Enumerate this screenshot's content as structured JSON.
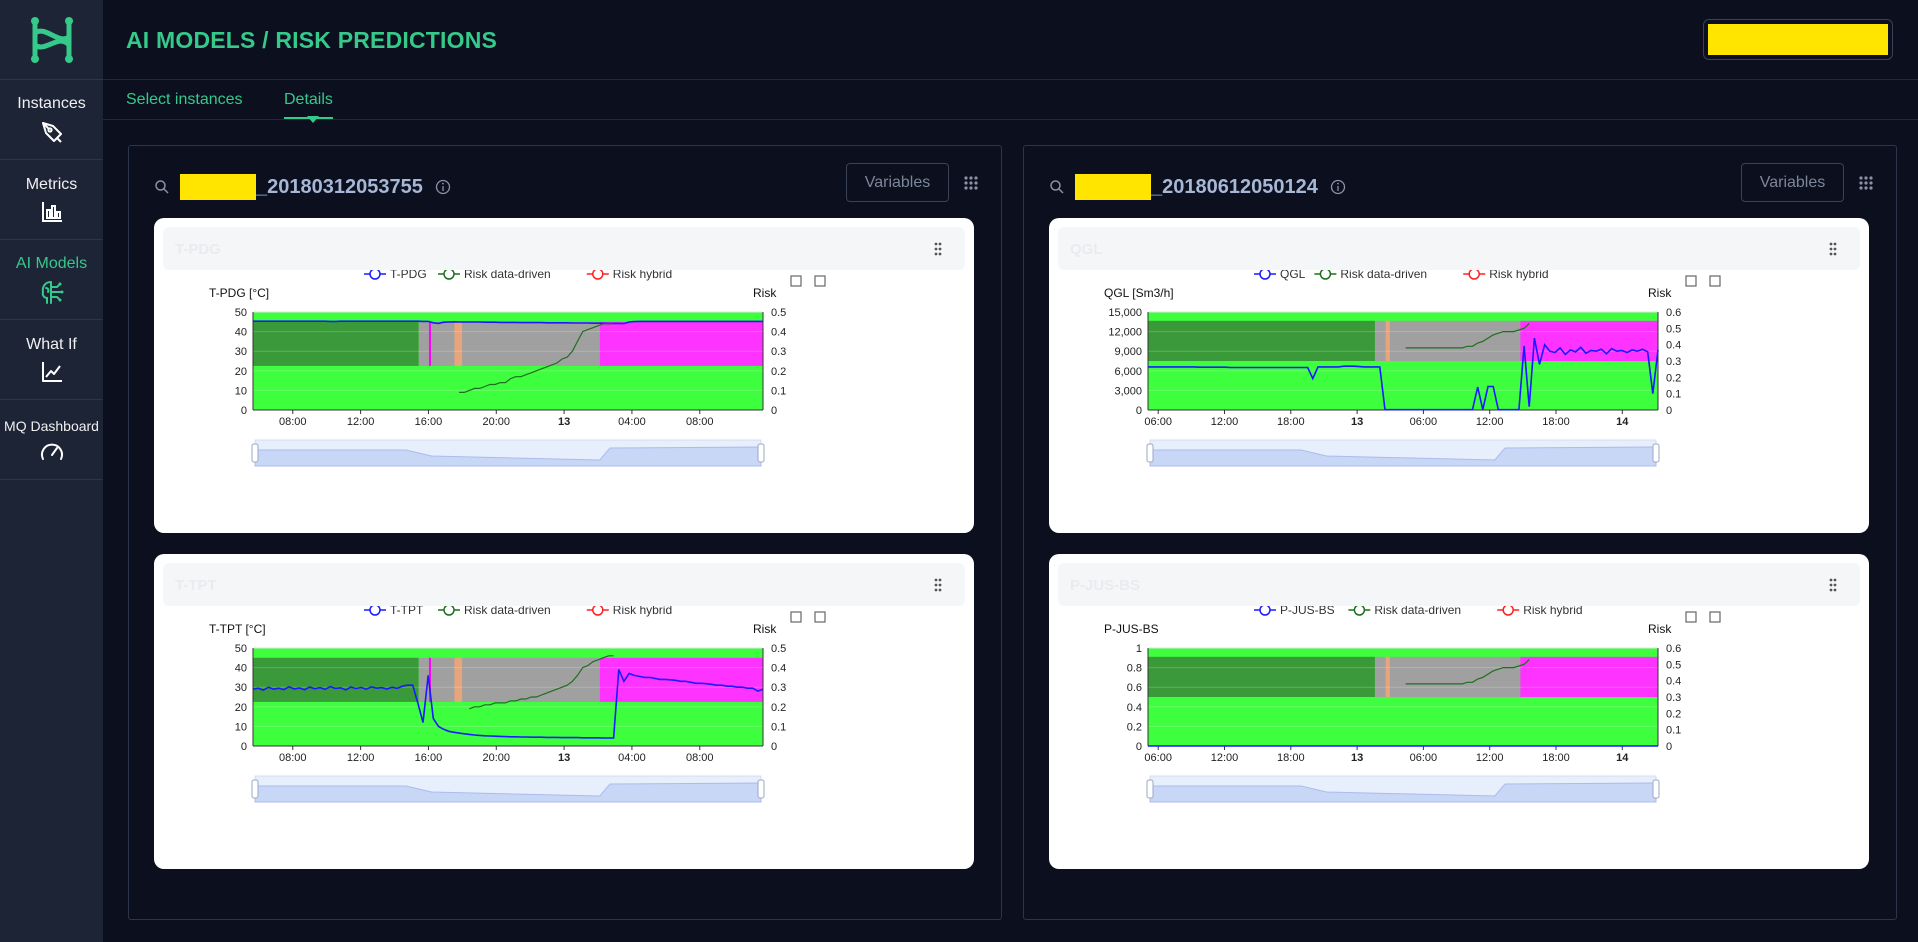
{
  "header": {
    "title": "AI MODELS / RISK PREDICTIONS"
  },
  "sidebar": {
    "items": [
      {
        "label": "Instances",
        "icon": "pen-tool-icon"
      },
      {
        "label": "Metrics",
        "icon": "bar-chart-icon"
      },
      {
        "label": "AI Models",
        "icon": "brain-icon",
        "active": true
      },
      {
        "label": "What If",
        "icon": "line-chart-icon"
      },
      {
        "label": "MQ Dashboard",
        "icon": "gauge-icon"
      }
    ]
  },
  "tabs": {
    "select": "Select instances",
    "details": "Details"
  },
  "panels": [
    {
      "instance_suffix": "_20180312053755",
      "variables_label": "Variables"
    },
    {
      "instance_suffix": "_20180612050124",
      "variables_label": "Variables"
    }
  ],
  "colors": {
    "accent": "#35c98a",
    "series_main": "#1a1aff",
    "series_data_driven": "#1f6e1f",
    "series_hybrid": "#ff2020",
    "zone_green": "#3dff3d",
    "zone_dark_green": "#3a9a3a",
    "zone_gray": "#a0a0a0",
    "zone_magenta": "#ff33ff",
    "zone_orange": "#e8a57c"
  },
  "chart_data": [
    {
      "type": "line",
      "title": "T-PDG",
      "legend": [
        "T-PDG",
        "Risk data-driven",
        "Risk hybrid"
      ],
      "ylabel": "T-PDG [°C]",
      "y2label": "Risk",
      "x_ticks": [
        "08:00",
        "12:00",
        "16:00",
        "20:00",
        "13",
        "04:00",
        "08:00"
      ],
      "y_ticks": [
        "50",
        "40",
        "30",
        "20",
        "10",
        "0"
      ],
      "y2_ticks": [
        "0.5",
        "0.4",
        "0.3",
        "0.2",
        "0.1",
        "0"
      ],
      "ylim": [
        0,
        50
      ],
      "y2lim": [
        0,
        0.5
      ],
      "series": [
        {
          "name": "T-PDG",
          "values": [
            45.3,
            45.3,
            45.3,
            45.3,
            45.3,
            45.3,
            45.3,
            45.3,
            45.3,
            45.3,
            45.3,
            45.3,
            45.3,
            45.3,
            45.3,
            45.2,
            45.2,
            45.3,
            45.3,
            45.3,
            45.3,
            45.3,
            45.3,
            45.3,
            45.3,
            45.3,
            45.3,
            45.3,
            45.3,
            45.3,
            45.3,
            45.3,
            45.3,
            45.2,
            45.2,
            44.5,
            44.2,
            44.8,
            44.9,
            45.0,
            44.9,
            44.9,
            44.9,
            44.9,
            44.9,
            44.8,
            44.8,
            44.8,
            44.7,
            44.7,
            44.7,
            44.7,
            44.6,
            44.6,
            44.6,
            44.6,
            44.6,
            44.5,
            44.5,
            44.5,
            44.5,
            44.5,
            44.4,
            44.4,
            44.4,
            44.4,
            44.3,
            44.3,
            44.3,
            44.2,
            44.2,
            44.2,
            44.1,
            44.9,
            45.1,
            45.2,
            45.2,
            45.2,
            45.2,
            45.2,
            45.2,
            45.2,
            45.2,
            45.2,
            45.2,
            45.2,
            45.2,
            45.2,
            45.2,
            45.2,
            45.2,
            45.2,
            45.2,
            45.2,
            45.2,
            45.2,
            45.2,
            45.2,
            45.2,
            45.2
          ]
        },
        {
          "name": "Risk data-driven",
          "values": [
            null,
            null,
            null,
            null,
            null,
            null,
            null,
            null,
            null,
            null,
            null,
            null,
            null,
            null,
            null,
            null,
            null,
            null,
            null,
            null,
            null,
            null,
            null,
            null,
            null,
            null,
            null,
            null,
            null,
            null,
            null,
            null,
            null,
            null,
            null,
            null,
            null,
            null,
            null,
            null,
            0.09,
            0.09,
            0.1,
            0.11,
            0.11,
            0.12,
            0.13,
            0.13,
            0.14,
            0.14,
            0.16,
            0.17,
            0.17,
            0.18,
            0.19,
            0.2,
            0.21,
            0.22,
            0.23,
            0.24,
            0.26,
            0.27,
            0.3,
            0.35,
            0.4,
            0.41,
            0.42,
            0.43,
            0.44,
            0.44,
            0.44,
            null,
            null,
            null,
            null,
            null,
            null,
            null,
            null,
            null,
            null,
            null,
            null,
            null,
            null,
            null,
            null,
            null,
            null,
            null,
            null,
            null,
            null,
            null,
            null,
            null,
            null,
            null,
            null,
            null
          ]
        },
        {
          "name": "Risk hybrid",
          "values": []
        }
      ]
    },
    {
      "type": "line",
      "title": "T-TPT",
      "legend": [
        "T-TPT",
        "Risk data-driven",
        "Risk hybrid"
      ],
      "ylabel": "T-TPT [°C]",
      "y2label": "Risk",
      "x_ticks": [
        "08:00",
        "12:00",
        "16:00",
        "20:00",
        "13",
        "04:00",
        "08:00"
      ],
      "y_ticks": [
        "50",
        "40",
        "30",
        "20",
        "10",
        "0"
      ],
      "y2_ticks": [
        "0.5",
        "0.4",
        "0.3",
        "0.2",
        "0.1",
        "0"
      ],
      "ylim": [
        0,
        50
      ],
      "y2lim": [
        0,
        0.5
      ],
      "series": [
        {
          "name": "T-TPT",
          "values": [
            29,
            29.5,
            28.5,
            30,
            29,
            29.5,
            28.8,
            30.2,
            29.1,
            29.6,
            28.7,
            30.1,
            29.2,
            29.8,
            28.9,
            30.3,
            29.4,
            29.7,
            28.6,
            30.1,
            29.3,
            29.9,
            29.0,
            30.2,
            29.5,
            29.8,
            29.1,
            30.0,
            29.4,
            30.5,
            31,
            31,
            22,
            12,
            36,
            14,
            10,
            8.5,
            7.5,
            7,
            6.6,
            6.2,
            5.9,
            5.6,
            5.4,
            5.2,
            5.1,
            5.0,
            4.9,
            4.8,
            4.7,
            4.7,
            4.6,
            4.6,
            4.5,
            4.5,
            4.5,
            4.4,
            4.4,
            4.4,
            4.3,
            4.3,
            4.3,
            4.3,
            4.2,
            4.2,
            4.2,
            4.2,
            4.1,
            4.1,
            4.1,
            39,
            33,
            37,
            36,
            35.5,
            35,
            35,
            34.5,
            34,
            34,
            33.8,
            33.5,
            33,
            33,
            32.5,
            32,
            32,
            31.8,
            31.5,
            31,
            31,
            30.5,
            30.5,
            30,
            30,
            29.5,
            29.5,
            28,
            29
          ]
        },
        {
          "name": "Risk data-driven",
          "values": [
            null,
            null,
            null,
            null,
            null,
            null,
            null,
            null,
            null,
            null,
            null,
            null,
            null,
            null,
            null,
            null,
            null,
            null,
            null,
            null,
            null,
            null,
            null,
            null,
            null,
            null,
            null,
            null,
            null,
            null,
            null,
            null,
            null,
            null,
            null,
            null,
            null,
            null,
            null,
            null,
            null,
            null,
            0.19,
            0.2,
            0.2,
            0.21,
            0.21,
            0.22,
            0.22,
            0.22,
            0.23,
            0.23,
            0.24,
            0.24,
            0.25,
            0.25,
            0.26,
            0.27,
            0.28,
            0.29,
            0.3,
            0.31,
            0.33,
            0.36,
            0.4,
            0.41,
            0.43,
            0.44,
            0.45,
            0.46,
            0.46,
            null,
            null,
            null,
            null,
            null,
            null,
            null,
            null,
            null,
            null,
            null,
            null,
            null,
            null,
            null,
            null,
            null,
            null,
            null,
            null,
            null,
            null,
            null,
            null,
            null,
            null,
            null,
            null,
            null
          ]
        },
        {
          "name": "Risk hybrid",
          "values": []
        }
      ]
    },
    {
      "type": "line",
      "title": "QGL",
      "legend": [
        "QGL",
        "Risk data-driven",
        "Risk hybrid"
      ],
      "ylabel": "QGL [Sm3/h]",
      "y2label": "Risk",
      "x_ticks": [
        "06:00",
        "12:00",
        "18:00",
        "13",
        "06:00",
        "12:00",
        "18:00",
        "14"
      ],
      "y_ticks": [
        "15,000",
        "12,000",
        "9,000",
        "6,000",
        "3,000",
        "0"
      ],
      "y2_ticks": [
        "0.6",
        "0.5",
        "0.4",
        "0.3",
        "0.2",
        "0.1",
        "0"
      ],
      "ylim": [
        0,
        15000
      ],
      "y2lim": [
        0,
        0.6
      ],
      "series": [
        {
          "name": "QGL",
          "values": [
            6600,
            6600,
            6600,
            6600,
            6600,
            6600,
            6600,
            6600,
            6600,
            6600,
            6550,
            6550,
            6550,
            6550,
            6550,
            6550,
            6500,
            6500,
            6500,
            6500,
            6500,
            6500,
            6500,
            6500,
            6500,
            6500,
            6500,
            6500,
            6500,
            6500,
            6500,
            6500,
            4800,
            6600,
            6600,
            6600,
            6600,
            6600,
            6700,
            6700,
            6700,
            6650,
            6600,
            6600,
            6600,
            6600,
            50,
            50,
            50,
            50,
            50,
            50,
            50,
            50,
            50,
            50,
            50,
            50,
            50,
            50,
            50,
            50,
            50,
            50,
            3500,
            50,
            3600,
            3600,
            50,
            50,
            50,
            50,
            50,
            9800,
            500,
            11000,
            7000,
            10000,
            9000,
            8800,
            9500,
            8500,
            9200,
            8900,
            9600,
            8700,
            9100,
            9000,
            9300,
            8600,
            9400,
            9000,
            9100,
            8800,
            9200,
            9000,
            9300,
            8900,
            2500,
            9200
          ]
        },
        {
          "name": "Risk data-driven",
          "values": [
            null,
            null,
            null,
            null,
            null,
            null,
            null,
            null,
            null,
            null,
            null,
            null,
            null,
            null,
            null,
            null,
            null,
            null,
            null,
            null,
            null,
            null,
            null,
            null,
            null,
            null,
            null,
            null,
            null,
            null,
            null,
            null,
            null,
            null,
            null,
            null,
            null,
            null,
            null,
            null,
            null,
            null,
            null,
            null,
            null,
            null,
            null,
            null,
            null,
            null,
            0.38,
            0.38,
            0.38,
            0.38,
            0.38,
            0.38,
            0.38,
            0.38,
            0.38,
            0.38,
            0.38,
            0.38,
            0.39,
            0.39,
            0.41,
            0.42,
            0.44,
            0.46,
            0.47,
            0.48,
            0.48,
            0.48,
            0.49,
            0.5,
            0.53,
            null,
            null,
            null,
            null,
            null,
            null,
            null,
            null,
            null,
            null,
            null,
            null,
            null,
            null,
            null,
            null,
            null,
            null,
            null,
            null,
            null,
            null,
            null,
            null,
            null
          ]
        },
        {
          "name": "Risk hybrid",
          "values": []
        }
      ]
    },
    {
      "type": "line",
      "title": "P-JUS-BS",
      "legend": [
        "P-JUS-BS",
        "Risk data-driven",
        "Risk hybrid"
      ],
      "ylabel": "P-JUS-BS",
      "y2label": "Risk",
      "x_ticks": [
        "06:00",
        "12:00",
        "18:00",
        "13",
        "06:00",
        "12:00",
        "18:00",
        "14"
      ],
      "y_ticks": [
        "1",
        "0.8",
        "0.6",
        "0.4",
        "0.2",
        "0"
      ],
      "y2_ticks": [
        "0.6",
        "0.5",
        "0.4",
        "0.3",
        "0.2",
        "0.1",
        "0"
      ],
      "ylim": [
        0,
        1
      ],
      "y2lim": [
        0,
        0.6
      ],
      "series": [
        {
          "name": "P-JUS-BS",
          "values": [
            0,
            0,
            0,
            0,
            0,
            0,
            0,
            0,
            0,
            0,
            0,
            0,
            0,
            0,
            0,
            0,
            0,
            0,
            0,
            0,
            0,
            0,
            0,
            0,
            0,
            0,
            0,
            0,
            0,
            0,
            0,
            0,
            0,
            0,
            0,
            0,
            0,
            0,
            0,
            0,
            0,
            0,
            0,
            0,
            0,
            0,
            0,
            0,
            0,
            0,
            0,
            0,
            0,
            0,
            0,
            0,
            0,
            0,
            0,
            0,
            0,
            0,
            0,
            0,
            0,
            0,
            0,
            0,
            0,
            0,
            0,
            0,
            0,
            0,
            0,
            0,
            0,
            0,
            0,
            0,
            0,
            0,
            0,
            0,
            0,
            0,
            0,
            0,
            0,
            0,
            0,
            0,
            0,
            0,
            0,
            0,
            0,
            0,
            0,
            0
          ]
        },
        {
          "name": "Risk data-driven",
          "values": [
            null,
            null,
            null,
            null,
            null,
            null,
            null,
            null,
            null,
            null,
            null,
            null,
            null,
            null,
            null,
            null,
            null,
            null,
            null,
            null,
            null,
            null,
            null,
            null,
            null,
            null,
            null,
            null,
            null,
            null,
            null,
            null,
            null,
            null,
            null,
            null,
            null,
            null,
            null,
            null,
            null,
            null,
            null,
            null,
            null,
            null,
            null,
            null,
            null,
            null,
            0.38,
            0.38,
            0.38,
            0.38,
            0.38,
            0.38,
            0.38,
            0.38,
            0.38,
            0.38,
            0.38,
            0.38,
            0.39,
            0.39,
            0.41,
            0.42,
            0.44,
            0.46,
            0.47,
            0.48,
            0.48,
            0.48,
            0.49,
            0.5,
            0.53,
            null,
            null,
            null,
            null,
            null,
            null,
            null,
            null,
            null,
            null,
            null,
            null,
            null,
            null,
            null,
            null,
            null,
            null,
            null,
            null,
            null,
            null,
            null,
            null,
            null
          ]
        },
        {
          "name": "Risk hybrid",
          "values": []
        }
      ]
    }
  ]
}
